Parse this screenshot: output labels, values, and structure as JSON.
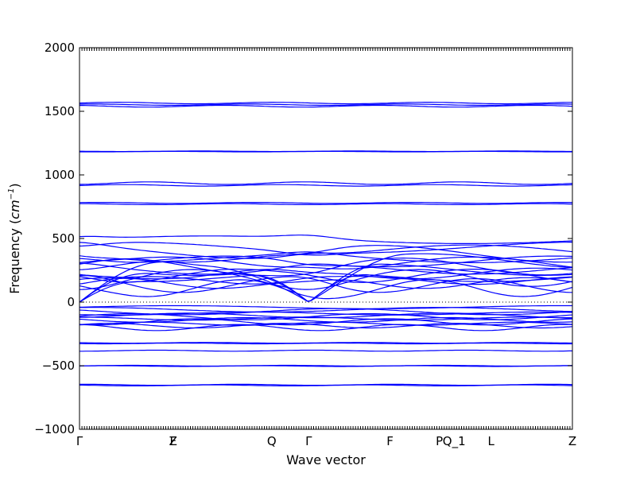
{
  "chart_data": {
    "type": "line",
    "title": "",
    "xlabel": "Wave vector",
    "ylabel": "Frequency ($cm^{-1}$)",
    "ylabel_main": "Frequency (",
    "ylabel_unit": "cm",
    "ylabel_exp": "−1",
    "ylabel_close": ")",
    "ylim": [
      -1000,
      2000
    ],
    "yticks": [
      2000,
      1500,
      1000,
      500,
      0,
      -500,
      -1000
    ],
    "ytick_labels": [
      "2000",
      "1500",
      "1000",
      "500",
      "0",
      "−500",
      "−1000"
    ],
    "x_tick_positions": [
      0.0,
      0.19,
      0.39,
      0.465,
      0.63,
      0.73,
      0.76,
      0.835,
      1.0
    ],
    "x_tick_labels": [
      "Γ",
      "Z",
      "Q",
      "Γ",
      "F",
      "P",
      "Q_1",
      "L",
      "Z"
    ],
    "x_overlap_tick_label": "F",
    "zero_reference_line": true,
    "band_color": "#0000ff",
    "approx_band_centers": [
      1565,
      1550,
      1540,
      1185,
      935,
      915,
      780,
      770,
      395,
      350,
      300,
      250,
      200,
      150,
      0,
      -50,
      -100,
      -150,
      -200,
      -320,
      -380,
      -500,
      -650
    ],
    "note": "Many phonon dispersion bands; values are approximate readings."
  },
  "axes": {
    "xlabel": "Wave vector"
  }
}
